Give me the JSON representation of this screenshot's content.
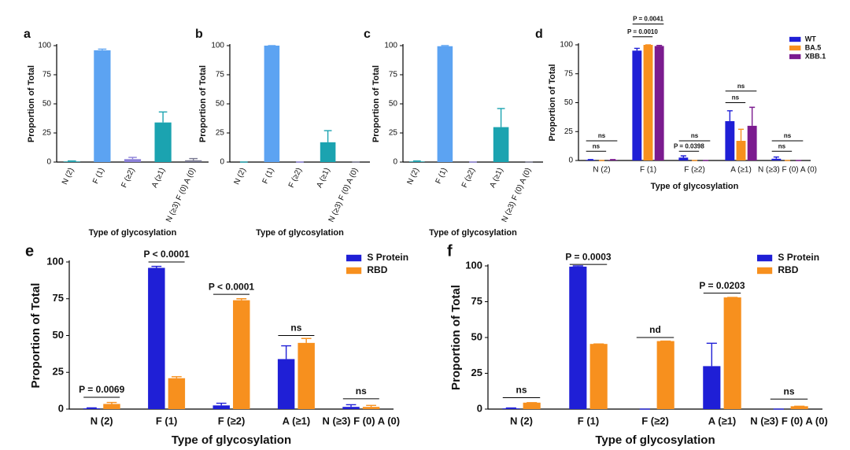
{
  "chart_data": [
    {
      "type": "bar",
      "label": "a",
      "ylabel": "Proportion of Total",
      "xlabel": "Type of glycosylation",
      "categories": [
        "N (2)",
        "F (1)",
        "F (≥2)",
        "A (≥1)",
        "N (≥3) F (0) A (0)"
      ],
      "values": [
        0.5,
        96,
        2.5,
        34,
        1.5
      ],
      "errors": [
        0.5,
        1,
        1.5,
        9,
        1.5
      ],
      "colors": [
        "#1ba3b0",
        "#5ca3f2",
        "#8a7fd8",
        "#1ba3b0",
        "#77778f"
      ],
      "ylim": [
        0,
        100
      ],
      "yticks": [
        0,
        25,
        50,
        75,
        100
      ]
    },
    {
      "type": "bar",
      "label": "b",
      "ylabel": "Proportion of Total",
      "xlabel": "Type of glycosylation",
      "categories": [
        "N (2)",
        "F (1)",
        "F (≥2)",
        "A (≥1)",
        "N (≥3) F (0) A (0)"
      ],
      "values": [
        0,
        100,
        0,
        17,
        0
      ],
      "errors": [
        0,
        0,
        0,
        10,
        0
      ],
      "colors": [
        "#1ba3b0",
        "#5ca3f2",
        "#8a7fd8",
        "#1ba3b0",
        "#77778f"
      ],
      "ylim": [
        0,
        100
      ],
      "yticks": [
        0,
        25,
        50,
        75,
        100
      ]
    },
    {
      "type": "bar",
      "label": "c",
      "ylabel": "Proportion of Total",
      "xlabel": "Type of glycosylation",
      "categories": [
        "N (2)",
        "F (1)",
        "F (≥2)",
        "A (≥1)",
        "N (≥3) F (0) A (0)"
      ],
      "values": [
        0.5,
        99.5,
        0,
        30,
        0
      ],
      "errors": [
        0.5,
        0.5,
        0,
        16,
        0
      ],
      "colors": [
        "#1ba3b0",
        "#5ca3f2",
        "#8a7fd8",
        "#1ba3b0",
        "#77778f"
      ],
      "ylim": [
        0,
        100
      ],
      "yticks": [
        0,
        25,
        50,
        75,
        100
      ]
    },
    {
      "type": "grouped-bar",
      "label": "d",
      "ylabel": "Proportion of Total",
      "xlabel": "Type of glycosylation",
      "categories": [
        "N (2)",
        "F (1)",
        "F (≥2)",
        "A (≥1)",
        "N (≥3) F (0) A (0)"
      ],
      "series": [
        {
          "name": "WT",
          "color": "#1f1fd6",
          "values": [
            0.5,
            95,
            2.5,
            34,
            1.5
          ],
          "errors": [
            0.3,
            2,
            1.5,
            9,
            1.5
          ]
        },
        {
          "name": "BA.5",
          "color": "#f7901e",
          "values": [
            0,
            100,
            0,
            17,
            0
          ],
          "errors": [
            0,
            0,
            0,
            10,
            0
          ]
        },
        {
          "name": "XBB.1",
          "color": "#7b1b8f",
          "values": [
            0.5,
            99,
            0,
            30,
            0
          ],
          "errors": [
            0.3,
            0.5,
            0,
            16,
            0
          ]
        }
      ],
      "annotations": [
        "ns",
        "ns",
        "P = 0.0041",
        "P = 0.0010",
        "P = 0.0398",
        "ns",
        "ns",
        "ns",
        "ns",
        "ns"
      ],
      "legend": "upper right",
      "ylim": [
        0,
        100
      ],
      "yticks": [
        0,
        25,
        50,
        75,
        100
      ]
    },
    {
      "type": "grouped-bar",
      "label": "e",
      "ylabel": "Proportion of Total",
      "xlabel": "Type of glycosylation",
      "categories": [
        "N (2)",
        "F (1)",
        "F (≥2)",
        "A (≥1)",
        "N (≥3) F (0) A (0)"
      ],
      "series": [
        {
          "name": "S Protein",
          "color": "#1f1fd6",
          "values": [
            0.5,
            96,
            2.5,
            34,
            1.5
          ],
          "errors": [
            0.3,
            1,
            1.5,
            9,
            1.5
          ]
        },
        {
          "name": "RBD",
          "color": "#f7901e",
          "values": [
            3.5,
            21,
            74,
            45,
            1.5
          ],
          "errors": [
            1,
            1,
            1,
            3,
            1
          ]
        }
      ],
      "annotations": [
        "P = 0.0069",
        "P < 0.0001",
        "P < 0.0001",
        "ns",
        "ns"
      ],
      "legend": "upper right",
      "ylim": [
        0,
        100
      ],
      "yticks": [
        0,
        25,
        50,
        75,
        100
      ]
    },
    {
      "type": "grouped-bar",
      "label": "f",
      "ylabel": "Proportion of Total",
      "xlabel": "Type of glycosylation",
      "categories": [
        "N (2)",
        "F (1)",
        "F (≥2)",
        "A (≥1)",
        "N (≥3) F (0) A (0)"
      ],
      "series": [
        {
          "name": "S Protein",
          "color": "#1f1fd6",
          "values": [
            0.5,
            99.5,
            0,
            30,
            0
          ],
          "errors": [
            0.3,
            0.5,
            0,
            16,
            0
          ]
        },
        {
          "name": "RBD",
          "color": "#f7901e",
          "values": [
            4.5,
            45.5,
            47.5,
            78,
            2
          ],
          "errors": [
            0,
            0,
            0,
            0,
            0
          ]
        }
      ],
      "annotations": [
        "ns",
        "P = 0.0003",
        "nd",
        "P = 0.0203",
        "ns"
      ],
      "legend": "upper right",
      "ylim": [
        0,
        100
      ],
      "yticks": [
        0,
        25,
        50,
        75,
        100
      ]
    }
  ]
}
